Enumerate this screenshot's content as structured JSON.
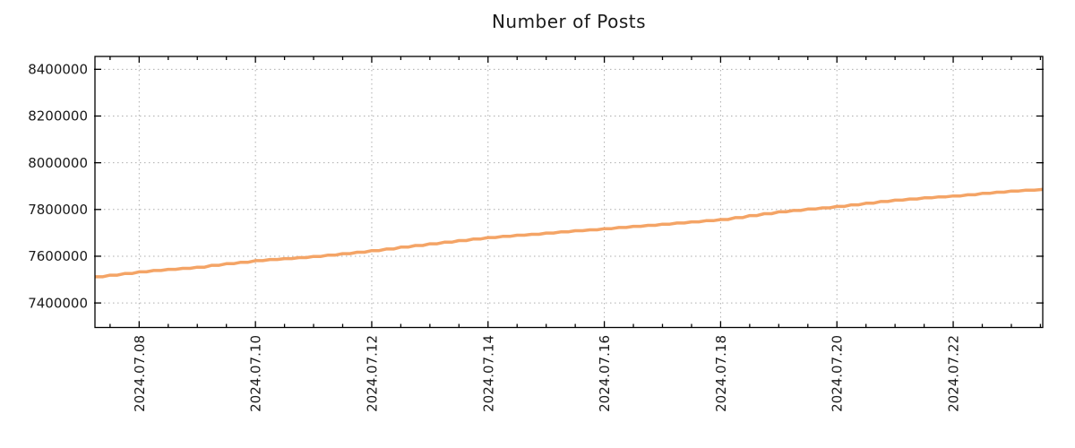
{
  "chart_data": {
    "type": "line",
    "title": "Number of Posts",
    "grid": "dotted",
    "legend": "none",
    "colors": {
      "line": "#F4A466",
      "axis": "#000000",
      "grid": "#ADADAD",
      "text": "#1A1A1A",
      "background": "#FFFFFF"
    },
    "x_axis": {
      "unit": "date",
      "tick_labels": [
        "2024.07.08",
        "2024.07.10",
        "2024.07.12",
        "2024.07.14",
        "2024.07.16",
        "2024.07.18",
        "2024.07.20",
        "2024.07.22"
      ],
      "tick_positions_days": [
        1,
        3,
        5,
        7,
        9,
        11,
        13,
        15
      ],
      "minor_tick_step_days": 0.5,
      "domain_days": [
        0.24,
        16.54
      ],
      "label_rotation_deg": -90
    },
    "y_axis": {
      "tick_labels": [
        "7400000",
        "7600000",
        "7800000",
        "8000000",
        "8200000",
        "8400000"
      ],
      "tick_values": [
        7400000,
        7600000,
        7800000,
        8000000,
        8200000,
        8400000
      ],
      "domain": [
        7295000,
        8455000
      ]
    },
    "series": [
      {
        "name": "posts",
        "color": "#F4A466",
        "points": [
          [
            0.24,
            7512000
          ],
          [
            0.5,
            7519000
          ],
          [
            0.75,
            7526000
          ],
          [
            1.0,
            7533000
          ],
          [
            1.25,
            7539000
          ],
          [
            1.5,
            7544000
          ],
          [
            1.75,
            7548000
          ],
          [
            2.0,
            7553000
          ],
          [
            2.25,
            7561000
          ],
          [
            2.5,
            7568000
          ],
          [
            2.75,
            7574000
          ],
          [
            3.0,
            7581000
          ],
          [
            3.25,
            7586000
          ],
          [
            3.5,
            7590000
          ],
          [
            3.75,
            7594000
          ],
          [
            4.0,
            7599000
          ],
          [
            4.25,
            7605000
          ],
          [
            4.5,
            7611000
          ],
          [
            4.75,
            7617000
          ],
          [
            5.0,
            7624000
          ],
          [
            5.25,
            7631000
          ],
          [
            5.5,
            7639000
          ],
          [
            5.75,
            7646000
          ],
          [
            6.0,
            7653000
          ],
          [
            6.25,
            7660000
          ],
          [
            6.5,
            7667000
          ],
          [
            6.75,
            7674000
          ],
          [
            7.0,
            7680000
          ],
          [
            7.25,
            7685000
          ],
          [
            7.5,
            7690000
          ],
          [
            7.75,
            7694000
          ],
          [
            8.0,
            7699000
          ],
          [
            8.25,
            7704000
          ],
          [
            8.5,
            7709000
          ],
          [
            8.75,
            7713000
          ],
          [
            9.0,
            7718000
          ],
          [
            9.25,
            7723000
          ],
          [
            9.5,
            7728000
          ],
          [
            9.75,
            7732000
          ],
          [
            10.0,
            7737000
          ],
          [
            10.25,
            7742000
          ],
          [
            10.5,
            7747000
          ],
          [
            10.75,
            7752000
          ],
          [
            11.0,
            7757000
          ],
          [
            11.25,
            7765000
          ],
          [
            11.5,
            7774000
          ],
          [
            11.75,
            7782000
          ],
          [
            12.0,
            7790000
          ],
          [
            12.25,
            7796000
          ],
          [
            12.5,
            7802000
          ],
          [
            12.75,
            7807000
          ],
          [
            13.0,
            7813000
          ],
          [
            13.25,
            7820000
          ],
          [
            13.5,
            7827000
          ],
          [
            13.75,
            7834000
          ],
          [
            14.0,
            7840000
          ],
          [
            14.25,
            7845000
          ],
          [
            14.5,
            7850000
          ],
          [
            14.75,
            7854000
          ],
          [
            15.0,
            7858000
          ],
          [
            15.25,
            7863000
          ],
          [
            15.5,
            7869000
          ],
          [
            15.75,
            7874000
          ],
          [
            16.0,
            7879000
          ],
          [
            16.25,
            7883000
          ],
          [
            16.54,
            7886000
          ]
        ]
      }
    ]
  }
}
